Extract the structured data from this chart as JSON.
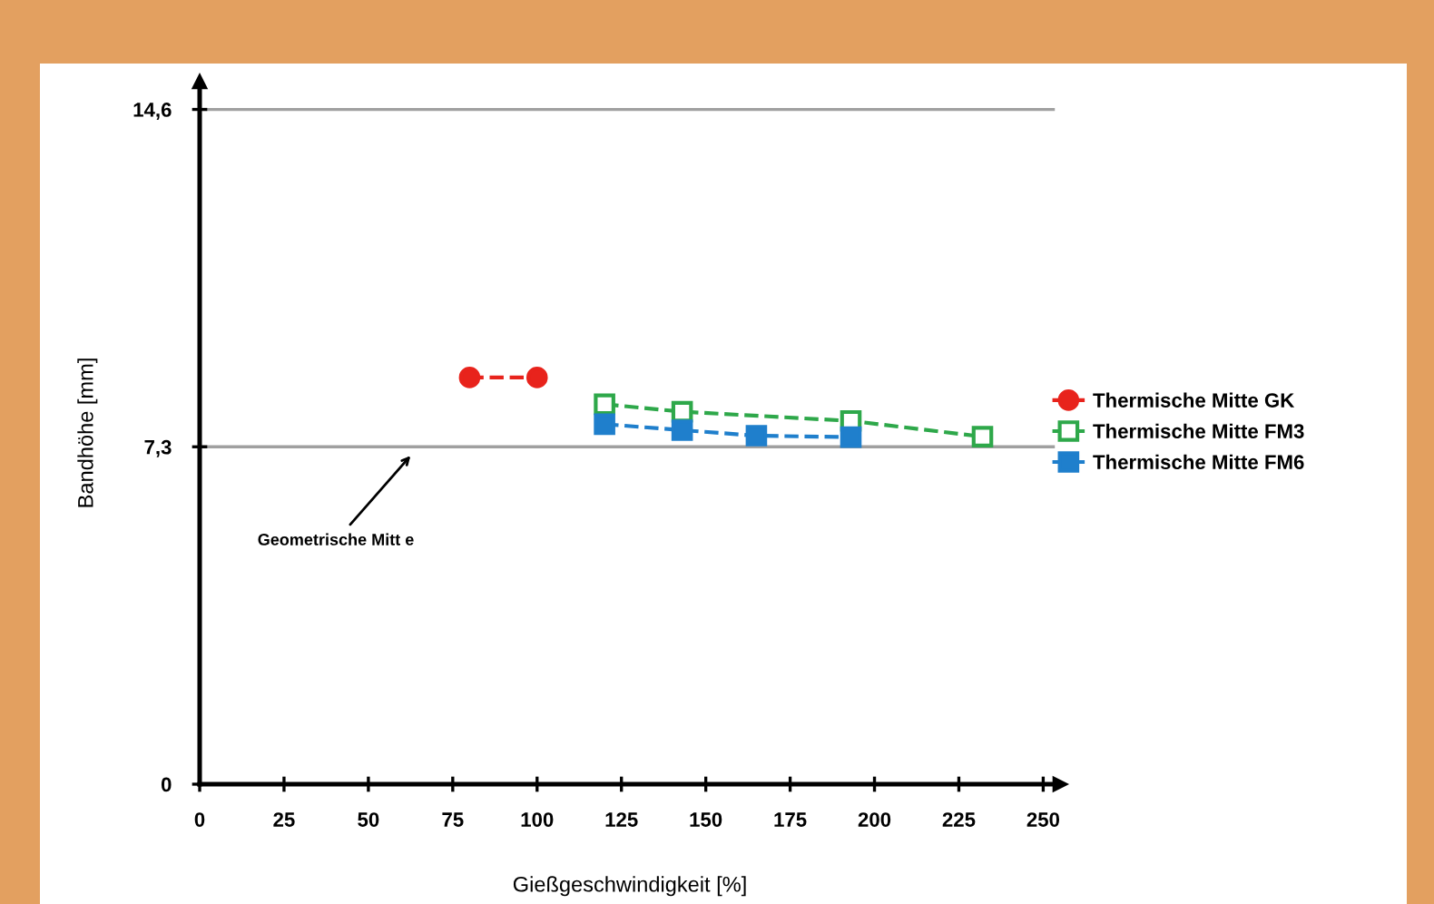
{
  "chart_data": {
    "type": "line",
    "xlabel": "Gießgeschwindigkeit [%]",
    "ylabel": "Bandhöhe [mm]",
    "xlim": [
      0,
      255
    ],
    "xticks": [
      0,
      25,
      50,
      75,
      100,
      125,
      150,
      175,
      200,
      225,
      250
    ],
    "ylim": [
      0,
      15.2
    ],
    "yticks": [
      {
        "value": 0,
        "label": "0"
      },
      {
        "value": 7.3,
        "label": "7,3"
      },
      {
        "value": 14.6,
        "label": "14,6"
      }
    ],
    "grid": "y",
    "legend": "right",
    "line_style": "dashed",
    "annotations": [
      "Geometrische Mitt e"
    ],
    "series": [
      {
        "name": "Thermische Mitte GK",
        "color": "#e8231c",
        "marker": "circle",
        "x": [
          80,
          100
        ],
        "values": [
          8.8,
          8.8
        ]
      },
      {
        "name": "Thermische Mitte FM3",
        "color": "#2ea84a",
        "marker": "square",
        "x": [
          120,
          143,
          193,
          232
        ],
        "values": [
          8.22,
          8.06,
          7.86,
          7.52
        ]
      },
      {
        "name": "Thermische Mitte FM6",
        "color": "#1f7fcc",
        "marker": "square",
        "x": [
          120,
          143,
          165,
          193
        ],
        "values": [
          7.79,
          7.66,
          7.54,
          7.51
        ]
      }
    ]
  }
}
